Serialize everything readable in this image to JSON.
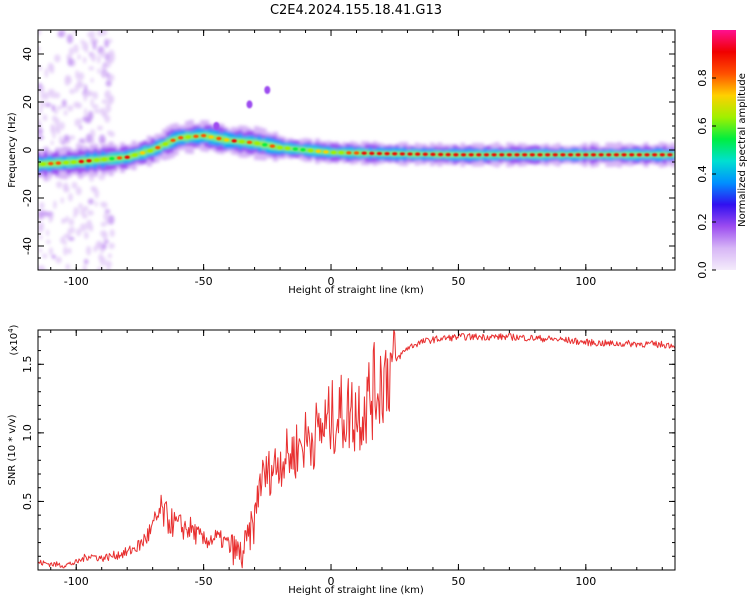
{
  "title": "C2E4.2024.155.18.41.G13",
  "chart_data": [
    {
      "type": "heatmap",
      "title": "C2E4.2024.155.18.41.G13",
      "xlabel": "Height of straight line (km)",
      "ylabel": "Frequency (Hz)",
      "xlim": [
        -115,
        135
      ],
      "ylim": [
        -50,
        50
      ],
      "xticks": [
        -100,
        -50,
        0,
        50,
        100
      ],
      "yticks": [
        -40,
        -20,
        0,
        20,
        40
      ],
      "colorbar": {
        "label": "Normalized spectral amplitude",
        "range": [
          0.0,
          1.0
        ],
        "ticks": [
          0.0,
          0.2,
          0.4,
          0.6,
          0.8
        ],
        "colors": [
          "#f4ecfb",
          "#d7b6f6",
          "#9c4cf0",
          "#3010f0",
          "#0090ff",
          "#00e0d0",
          "#00ee40",
          "#a0f000",
          "#ffd000",
          "#ff5000",
          "#f00000",
          "#ff1090"
        ]
      },
      "ridge": [
        {
          "x": -115,
          "y": -6
        },
        {
          "x": -100,
          "y": -5
        },
        {
          "x": -90,
          "y": -4
        },
        {
          "x": -80,
          "y": -3
        },
        {
          "x": -70,
          "y": 0
        },
        {
          "x": -60,
          "y": 5
        },
        {
          "x": -50,
          "y": 6
        },
        {
          "x": -40,
          "y": 4
        },
        {
          "x": -30,
          "y": 3
        },
        {
          "x": -20,
          "y": 1
        },
        {
          "x": -10,
          "y": 0
        },
        {
          "x": 0,
          "y": -1
        },
        {
          "x": 20,
          "y": -1.5
        },
        {
          "x": 50,
          "y": -2
        },
        {
          "x": 100,
          "y": -2
        },
        {
          "x": 135,
          "y": -2
        }
      ],
      "isolated_peaks": [
        {
          "x": -45,
          "y": 10
        },
        {
          "x": -32,
          "y": 19
        },
        {
          "x": -25,
          "y": 25
        }
      ]
    },
    {
      "type": "line",
      "title": "",
      "xlabel": "Height of straight line (km)",
      "ylabel": "SNR (10 * v/v)",
      "exponent_label": "(x10",
      "exponent": "4",
      "exponent_close": ")",
      "xlim": [
        -115,
        135
      ],
      "ylim": [
        0,
        1.75
      ],
      "xticks": [
        -100,
        -50,
        0,
        50,
        100
      ],
      "yticks": [
        0.5,
        1.0,
        1.5
      ],
      "ytick_labels": [
        "0.5",
        "1.0",
        "1.5"
      ],
      "color": "#e83030",
      "series": [
        {
          "name": "SNR",
          "x": [
            -115,
            -105,
            -100,
            -95,
            -90,
            -85,
            -80,
            -75,
            -70,
            -67,
            -63,
            -60,
            -55,
            -50,
            -45,
            -40,
            -35,
            -30,
            -28,
            -25,
            -20,
            -15,
            -10,
            -5,
            0,
            5,
            10,
            15,
            20,
            25,
            30,
            35,
            40,
            50,
            60,
            70,
            80,
            90,
            100,
            110,
            120,
            135
          ],
          "values": [
            0.05,
            0.03,
            0.05,
            0.1,
            0.08,
            0.1,
            0.12,
            0.17,
            0.28,
            0.4,
            0.33,
            0.3,
            0.28,
            0.2,
            0.22,
            0.18,
            0.1,
            0.35,
            0.65,
            0.7,
            0.8,
            0.85,
            0.95,
            1.0,
            1.1,
            1.15,
            1.15,
            1.25,
            1.4,
            1.52,
            1.62,
            1.66,
            1.68,
            1.7,
            1.7,
            1.7,
            1.69,
            1.68,
            1.66,
            1.65,
            1.65,
            1.64
          ]
        }
      ]
    }
  ]
}
